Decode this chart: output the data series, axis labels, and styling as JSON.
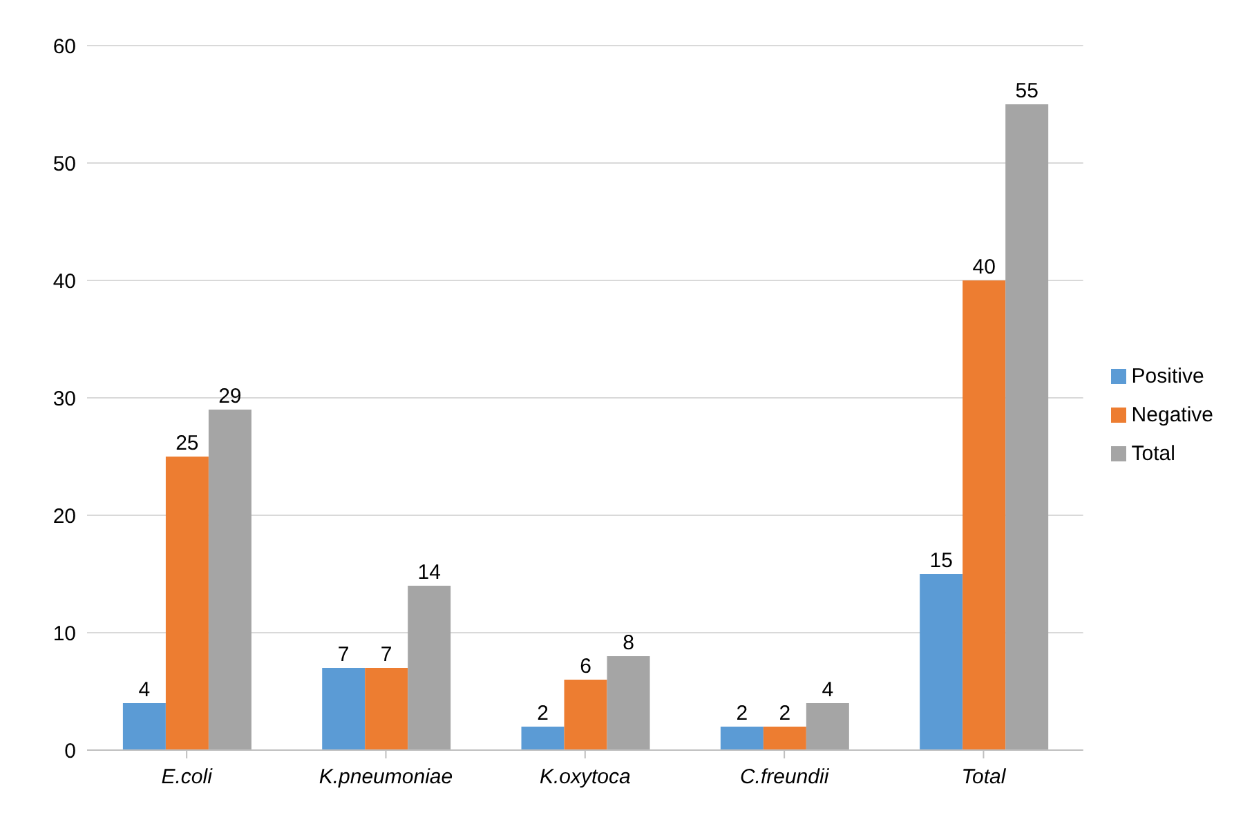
{
  "chart_data": {
    "type": "bar",
    "categories": [
      "E.coli",
      "K.pneumoniae",
      "K.oxytoca",
      "C.freundii",
      "Total"
    ],
    "series": [
      {
        "name": "Positive",
        "color": "#5b9bd5",
        "values": [
          4,
          7,
          2,
          2,
          15
        ]
      },
      {
        "name": "Negative",
        "color": "#ed7d31",
        "values": [
          25,
          7,
          6,
          2,
          40
        ]
      },
      {
        "name": "Total",
        "color": "#a5a5a5",
        "values": [
          29,
          14,
          8,
          4,
          55
        ]
      }
    ],
    "ylim": [
      0,
      60
    ],
    "yticks": [
      0,
      10,
      20,
      30,
      40,
      50,
      60
    ],
    "grid": "y",
    "legend": "right",
    "data_labels": true
  }
}
